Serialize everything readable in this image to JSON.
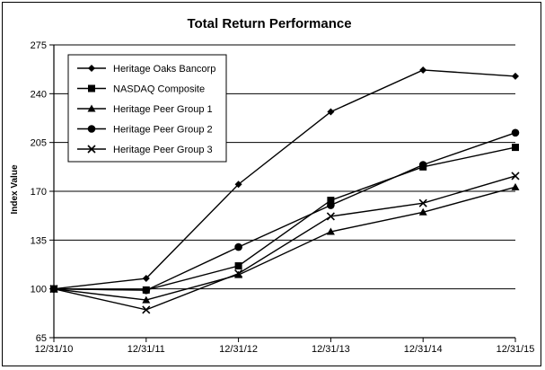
{
  "chart_data": {
    "type": "line",
    "title": "Total Return Performance",
    "xlabel": "",
    "ylabel": "Index Value",
    "categories": [
      "12/31/10",
      "12/31/11",
      "12/31/12",
      "12/31/13",
      "12/31/14",
      "12/31/15"
    ],
    "ylim": [
      65,
      275
    ],
    "yticks": [
      65,
      100,
      135,
      170,
      205,
      240,
      275
    ],
    "grid": "horizontal",
    "legend_position": "top-left",
    "series": [
      {
        "name": "Heritage Oaks Bancorp",
        "marker": "diamond",
        "values": [
          100,
          107.5,
          175,
          227,
          257,
          252.5
        ]
      },
      {
        "name": "NASDAQ Composite",
        "marker": "square",
        "values": [
          100,
          99.2,
          116.5,
          163.5,
          187.5,
          201.5
        ]
      },
      {
        "name": "Heritage Peer Group 1",
        "marker": "triangle",
        "values": [
          100,
          92,
          110,
          141,
          155,
          173
        ]
      },
      {
        "name": "Heritage Peer Group 2",
        "marker": "circle",
        "values": [
          100,
          99,
          130,
          160,
          189,
          212
        ]
      },
      {
        "name": "Heritage Peer Group 3",
        "marker": "x",
        "values": [
          100,
          85,
          111,
          152,
          161.5,
          181
        ]
      }
    ]
  }
}
